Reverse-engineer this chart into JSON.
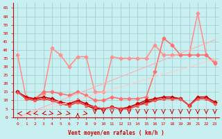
{
  "xlabel": "Vent moyen/en rafales ( km/h )",
  "bg_color": "#c8f0f0",
  "grid_color": "#a0c8c8",
  "x_ticks": [
    0,
    1,
    2,
    3,
    4,
    5,
    6,
    7,
    8,
    9,
    10,
    11,
    12,
    13,
    14,
    15,
    16,
    17,
    18,
    19,
    20,
    21,
    22,
    23
  ],
  "y_ticks": [
    0,
    5,
    10,
    15,
    20,
    25,
    30,
    35,
    40,
    45,
    50,
    55,
    60,
    65
  ],
  "ylim": [
    0,
    68
  ],
  "xlim": [
    -0.5,
    23.5
  ],
  "series": [
    {
      "x": [
        0,
        1,
        2,
        3,
        4,
        5,
        6,
        7,
        8,
        9,
        10,
        11,
        12,
        13,
        14,
        15,
        16,
        17,
        18,
        19,
        20,
        21,
        22,
        23
      ],
      "y": [
        37,
        11,
        11,
        14,
        41,
        37,
        30,
        36,
        36,
        15,
        15,
        36,
        35,
        35,
        35,
        35,
        43,
        37,
        37,
        37,
        37,
        62,
        37,
        33
      ],
      "color": "#ff9090",
      "lw": 1.2,
      "marker": "D",
      "ms": 2.5
    },
    {
      "x": [
        0,
        1,
        2,
        3,
        4,
        5,
        6,
        7,
        8,
        9,
        10,
        11,
        12,
        13,
        14,
        15,
        16,
        17,
        18,
        19,
        20,
        21,
        22,
        23
      ],
      "y": [
        15,
        11,
        11,
        15,
        15,
        14,
        13,
        15,
        13,
        10,
        10,
        12,
        11,
        11,
        11,
        12,
        27,
        47,
        43,
        37,
        37,
        37,
        37,
        32
      ],
      "color": "#ff7070",
      "lw": 1.2,
      "marker": "D",
      "ms": 2.5
    },
    {
      "x": [
        0,
        1,
        2,
        3,
        4,
        5,
        6,
        7,
        8,
        9,
        10,
        11,
        12,
        13,
        14,
        15,
        16,
        17,
        18,
        19,
        20,
        21,
        22,
        23
      ],
      "y": [
        15,
        12,
        11,
        12,
        11,
        9,
        8,
        10,
        8,
        6,
        5,
        6,
        5,
        6,
        8,
        10,
        11,
        12,
        12,
        11,
        7,
        12,
        12,
        9
      ],
      "color": "#cc0000",
      "lw": 1.2,
      "marker": "D",
      "ms": 2.5
    },
    {
      "x": [
        0,
        1,
        2,
        3,
        4,
        5,
        6,
        7,
        8,
        9,
        10,
        11,
        12,
        13,
        14,
        15,
        16,
        17,
        18,
        19,
        20,
        21,
        22,
        23
      ],
      "y": [
        15,
        11,
        10,
        11,
        10,
        8,
        7,
        9,
        7,
        5,
        5,
        6,
        5,
        5,
        7,
        9,
        10,
        11,
        11,
        11,
        7,
        11,
        11,
        8
      ],
      "color": "#aa0000",
      "lw": 1.2,
      "marker": "v",
      "ms": 2.5
    },
    {
      "x": [
        0,
        1,
        2,
        3,
        4,
        5,
        6,
        7,
        8,
        9,
        10,
        11,
        12,
        13,
        14,
        15,
        16,
        17,
        18,
        19,
        20,
        21,
        22,
        23
      ],
      "y": [
        15,
        11,
        10,
        11,
        10,
        8,
        7,
        9,
        7,
        6,
        5,
        6,
        5,
        5,
        7,
        8,
        10,
        11,
        11,
        11,
        7,
        11,
        11,
        8
      ],
      "color": "#ff5555",
      "lw": 1.0,
      "marker": "^",
      "ms": 2.5
    },
    {
      "x": [
        0,
        1,
        2,
        3,
        4,
        5,
        6,
        7,
        8,
        9,
        10,
        11,
        12,
        13,
        14,
        15,
        16,
        17,
        18,
        19,
        20,
        21,
        22,
        23
      ],
      "y": [
        0,
        2,
        4,
        6,
        8,
        10,
        12,
        14,
        16,
        18,
        20,
        22,
        24,
        26,
        28,
        30,
        32,
        34,
        36,
        38,
        40,
        42,
        44,
        46
      ],
      "color": "#ffb0b0",
      "lw": 0.8,
      "marker": null,
      "ms": 0
    },
    {
      "x": [
        0,
        1,
        2,
        3,
        4,
        5,
        6,
        7,
        8,
        9,
        10,
        11,
        12,
        13,
        14,
        15,
        16,
        17,
        18,
        19,
        20,
        21,
        22,
        23
      ],
      "y": [
        0,
        1.5,
        3,
        4.5,
        6,
        7.5,
        9,
        10.5,
        12,
        13.5,
        15,
        16.5,
        18,
        19.5,
        21,
        22.5,
        24,
        25.5,
        27,
        28.5,
        30,
        31.5,
        33,
        34.5
      ],
      "color": "#ffcccc",
      "lw": 0.8,
      "marker": null,
      "ms": 0
    }
  ],
  "axis_color": "#cc0000",
  "tick_color": "#cc0000",
  "label_color": "#cc0000",
  "arrow_angles_deg": [
    180,
    210,
    225,
    225,
    315,
    315,
    315,
    90,
    315,
    270,
    270,
    270,
    270,
    270,
    270,
    270,
    270,
    270,
    270,
    270,
    270,
    270,
    270,
    270
  ]
}
